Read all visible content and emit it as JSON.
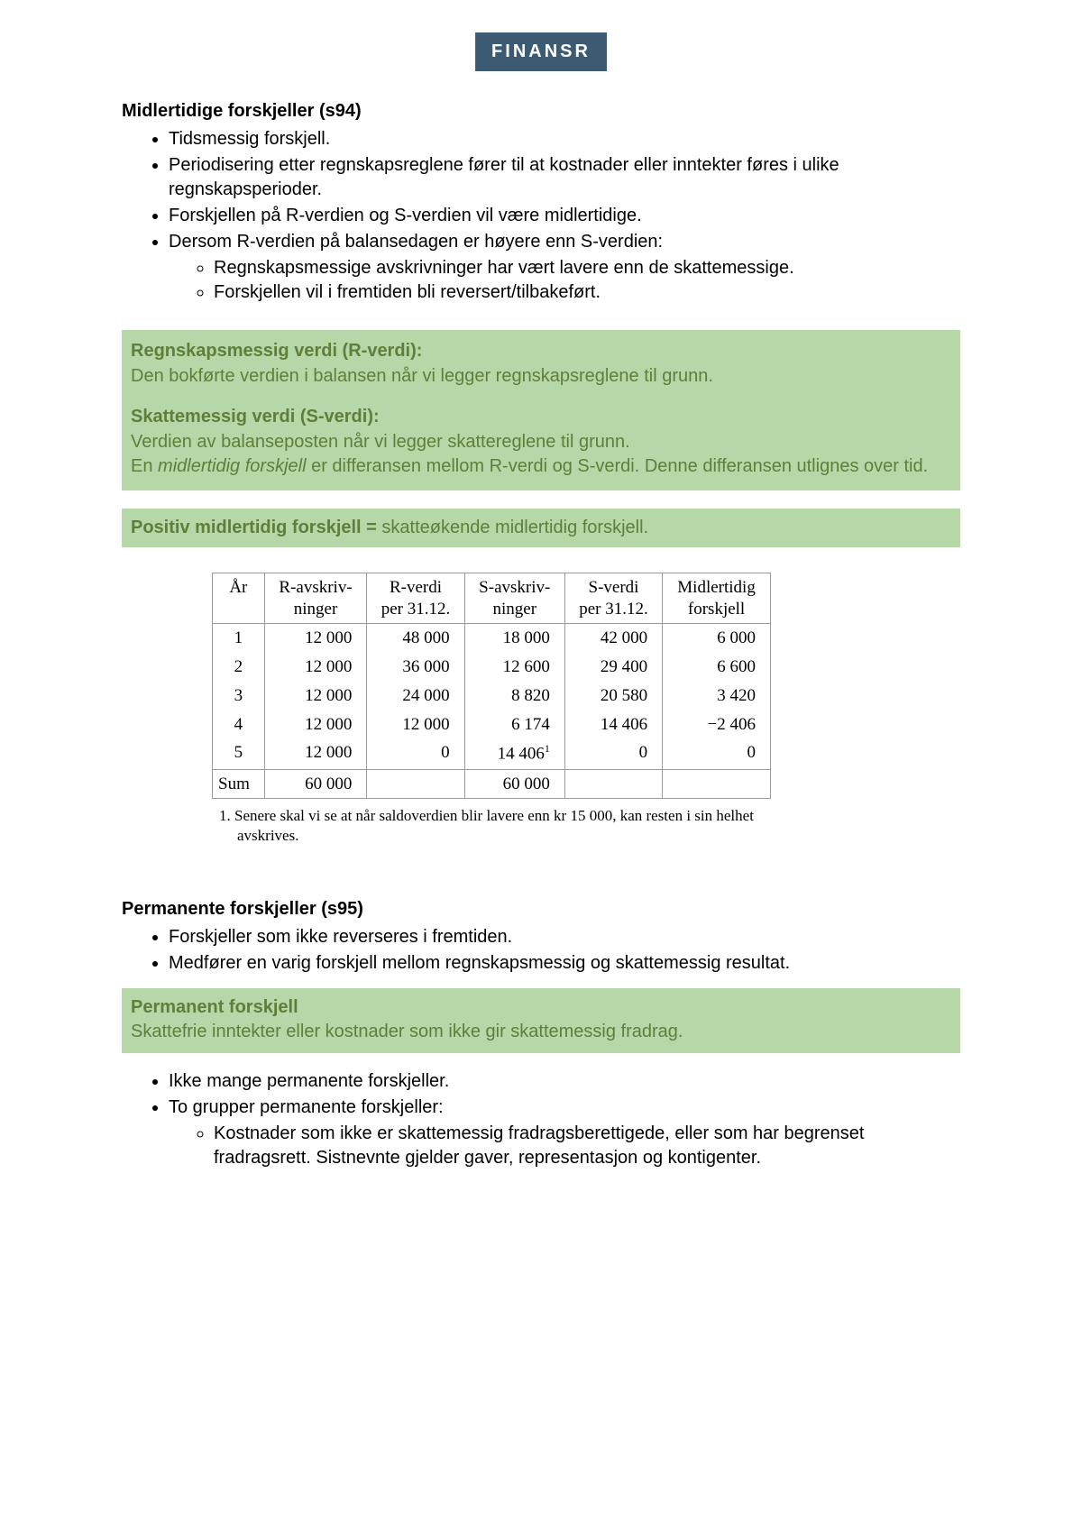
{
  "header": {
    "badge": "FINANSR"
  },
  "section_mid": {
    "title": "Midlertidige forskjeller (s94)",
    "bullets": [
      "Tidsmessig forskjell.",
      "Periodisering etter regnskapsreglene fører til at kostnader eller inntekter føres i ulike regnskapsperioder.",
      "Forskjellen på R-verdien og S-verdien vil være midlertidige.",
      "Dersom R-verdien på balansedagen er høyere enn S-verdien:"
    ],
    "sub_bullets": [
      "Regnskapsmessige avskrivninger har vært lavere enn de skattemessige.",
      "Forskjellen vil i fremtiden bli reversert/tilbakeført."
    ]
  },
  "defs_box": {
    "r_title": "Regnskapsmessig verdi (R-verdi):",
    "r_body": "Den bokførte verdien i balansen når vi legger regnskapsreglene til grunn.",
    "s_title": "Skattemessig verdi (S-verdi):",
    "s_body1": "Verdien av balanseposten når vi legger skattereglene til grunn.",
    "s_body2_pre": "En ",
    "s_body2_em": "midlertidig forskjell",
    "s_body2_post": " er differansen mellom R-verdi og S-verdi. Denne differansen utlignes over tid."
  },
  "pos_bar": {
    "strong": "Positiv midlertidig forskjell = ",
    "rest": "skatteøkende midlertidig forskjell."
  },
  "table": {
    "columns": [
      "År",
      "R-avskriv-\nninger",
      "R-verdi\nper 31.12.",
      "S-avskriv-\nninger",
      "S-verdi\nper 31.12.",
      "Midlertidig\nforskjell"
    ],
    "rows": [
      [
        "1",
        "12 000",
        "48 000",
        "18 000",
        "42 000",
        "6 000"
      ],
      [
        "2",
        "12 000",
        "36 000",
        "12 600",
        "29 400",
        "6 600"
      ],
      [
        "3",
        "12 000",
        "24 000",
        "8 820",
        "20 580",
        "3 420"
      ],
      [
        "4",
        "12 000",
        "12 000",
        "6 174",
        "14 406",
        "−2 406"
      ],
      [
        "5",
        "12 000",
        "0",
        "14 406¹",
        "0",
        "0"
      ]
    ],
    "sum_row": [
      "Sum",
      "60 000",
      "",
      "60 000",
      "",
      ""
    ]
  },
  "footnote": "1.   Senere skal vi se at når saldoverdien blir lavere enn kr 15 000, kan resten i sin helhet avskrives.",
  "section_perm": {
    "title": "Permanente forskjeller (s95)",
    "bullets": [
      "Forskjeller som ikke reverseres i fremtiden.",
      "Medfører en varig forskjell mellom regnskapsmessig og skattemessig resultat."
    ],
    "box_title": "Permanent forskjell",
    "box_body": "Skattefrie inntekter eller kostnader som ikke gir skattemessig fradrag.",
    "after_bullets": [
      "Ikke mange permanente forskjeller.",
      "To grupper permanente forskjeller:"
    ],
    "after_sub": [
      "Kostnader som ikke er skattemessig fradragsberettigede, eller som har begrenset fradragsrett. Sistnevnte gjelder gaver, representasjon og kontigenter."
    ]
  }
}
